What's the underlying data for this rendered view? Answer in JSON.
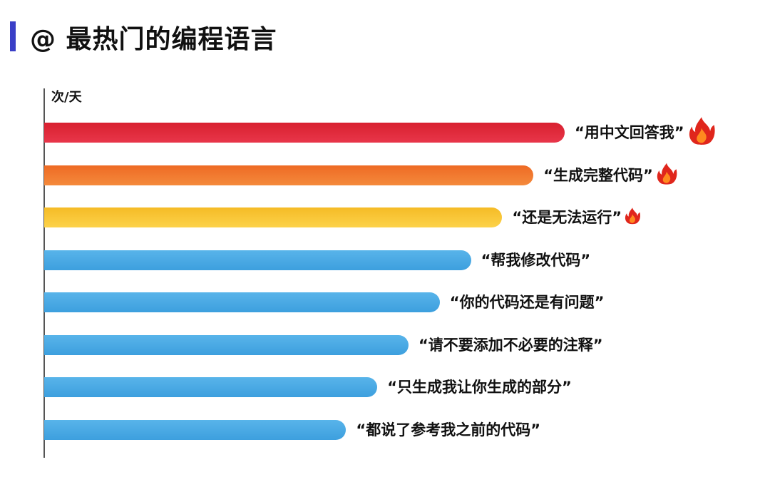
{
  "title": "@ 最热门的编程语言",
  "accent_color": "#3a3fc7",
  "chart_data": {
    "type": "bar",
    "orientation": "horizontal",
    "title": "@ 最热门的编程语言",
    "ylabel": "次/天",
    "xlim": [
      0,
      100
    ],
    "categories": [
      "“用中文回答我”",
      "“生成完整代码”",
      "“还是无法运行”",
      "“帮我修改代码”",
      "“你的代码还是有问题”",
      "“请不要添加不必要的注释”",
      "“只生成我让你生成的部分”",
      "“都说了参考我之前的代码”"
    ],
    "values": [
      100,
      94,
      88,
      82,
      76,
      70,
      64,
      58
    ],
    "bar_colors": [
      [
        "#d8202f",
        "#e8364a"
      ],
      [
        "#ee6a24",
        "#f48a3c"
      ],
      [
        "#f5bb26",
        "#fcd24a"
      ],
      [
        "#58b4ea",
        "#3d9fde"
      ],
      [
        "#58b4ea",
        "#3d9fde"
      ],
      [
        "#58b4ea",
        "#3d9fde"
      ],
      [
        "#58b4ea",
        "#3d9fde"
      ],
      [
        "#58b4ea",
        "#3d9fde"
      ]
    ],
    "fire_icons": [
      {
        "index": 0,
        "level": "large"
      },
      {
        "index": 1,
        "level": "medium"
      },
      {
        "index": 2,
        "level": "small"
      }
    ],
    "grid": false,
    "legend": "none"
  }
}
